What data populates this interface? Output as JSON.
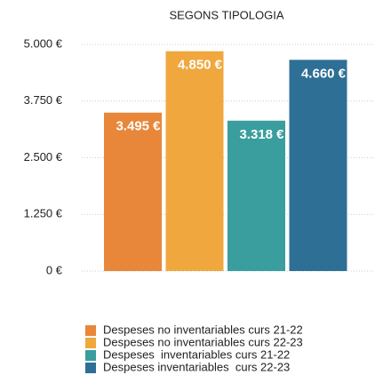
{
  "chart_data": {
    "type": "bar",
    "title": "SEGONS TIPOLOGIA",
    "series": [
      {
        "name": "Despeses no inventariables curs 21-22",
        "color": "#e8873a",
        "values": [
          3495
        ],
        "value_labels": [
          "3.495 €"
        ]
      },
      {
        "name": "Despeses no inventariables curs 22-23",
        "color": "#f0a83e",
        "values": [
          4850
        ],
        "value_labels": [
          "4.850 €"
        ]
      },
      {
        "name": "Despeses  inventariables curs 21-22",
        "color": "#3a9e9e",
        "values": [
          3318
        ],
        "value_labels": [
          "3.318 €"
        ]
      },
      {
        "name": "Despeses inventariables  curs 22-23",
        "color": "#2e6f96",
        "values": [
          4660
        ],
        "value_labels": [
          "4.660 €"
        ]
      }
    ],
    "ylim": [
      0,
      5000
    ],
    "yticks": [
      {
        "value": 0,
        "label": "0 €"
      },
      {
        "value": 1250,
        "label": "1.250 €"
      },
      {
        "value": 2500,
        "label": "2.500 €"
      },
      {
        "value": 3750,
        "label": "3.750 €"
      },
      {
        "value": 5000,
        "label": "5.000 €"
      }
    ],
    "grid": true,
    "legend": "bottom"
  }
}
